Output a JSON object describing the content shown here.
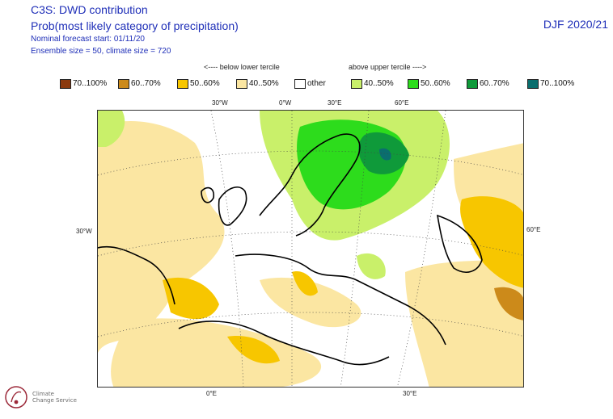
{
  "header": {
    "title": "C3S: DWD contribution",
    "subtitle": "Prob(most likely category of precipitation)",
    "forecast_start": "Nominal forecast start: 01/11/20",
    "ensemble": "Ensemble size = 50, climate size = 720",
    "season": "DJF 2020/21"
  },
  "legend": {
    "below_label": "<---- below lower tercile",
    "above_label": "above upper tercile ---->",
    "items": [
      {
        "label": "70..100%",
        "color": "#8b3a0f"
      },
      {
        "label": "60..70%",
        "color": "#cc8a1a"
      },
      {
        "label": "50..60%",
        "color": "#f7c600"
      },
      {
        "label": "40..50%",
        "color": "#fbe6a2"
      },
      {
        "label": "other",
        "color": "#ffffff"
      },
      {
        "label": "40..50%",
        "color": "#c9f06a"
      },
      {
        "label": "50..60%",
        "color": "#2ddc1c"
      },
      {
        "label": "60..70%",
        "color": "#0f9a3a"
      },
      {
        "label": "70..100%",
        "color": "#0a6e6e"
      }
    ]
  },
  "map": {
    "lon_labels_top": [
      "30°W",
      "0°W",
      "30°E",
      "60°E"
    ],
    "lon_labels_bottom": [
      "0°E",
      "30°E"
    ],
    "lat_label_left": "30°W",
    "lat_label_right": "60°E",
    "colors": {
      "dry_light": "#fbe6a2",
      "dry_mid": "#f7c600",
      "dry_strong": "#cc8a1a",
      "wet_light": "#c9f06a",
      "wet_mid": "#2ddc1c",
      "wet_strong": "#0f9a3a",
      "wet_max": "#0a6e6e",
      "other": "#ffffff"
    }
  },
  "logo": {
    "text_line1": "Climate",
    "text_line2": "Change Service"
  }
}
